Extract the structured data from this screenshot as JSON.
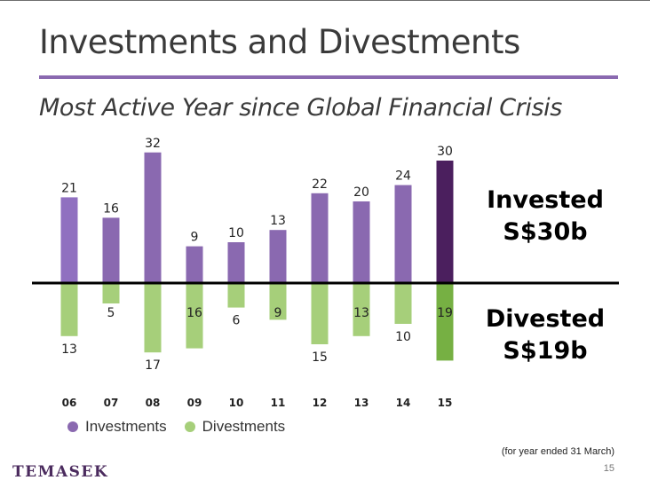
{
  "title": "Investments and Divestments",
  "subtitle": "Most Active Year since Global Financial Crisis",
  "summary": {
    "invested_label": "Invested",
    "invested_value": "S$30b",
    "divested_label": "Divested",
    "divested_value": "S$19b"
  },
  "footnote": "(for year ended 31 March)",
  "page_number": "15",
  "logo_text": "TEMASEK",
  "colors": {
    "investments": "#8a69b0",
    "investments_first": "#9070c0",
    "investments_latest": "#4b1f5e",
    "divestments": "#a6cf7a",
    "divestments_latest": "#76b043",
    "axis": "#000000",
    "title_rule": "#8a69b0"
  },
  "chart_data": {
    "type": "bar",
    "categories": [
      "06",
      "07",
      "08",
      "09",
      "10",
      "11",
      "12",
      "13",
      "14",
      "15"
    ],
    "series": [
      {
        "name": "Investments",
        "values": [
          21,
          16,
          32,
          9,
          10,
          13,
          22,
          20,
          24,
          30
        ]
      },
      {
        "name": "Divestments",
        "values": [
          13,
          5,
          17,
          16,
          6,
          9,
          15,
          13,
          10,
          19
        ]
      }
    ],
    "legend": [
      "Investments",
      "Divestments"
    ],
    "legend_position": "bottom-left",
    "grid": false
  }
}
